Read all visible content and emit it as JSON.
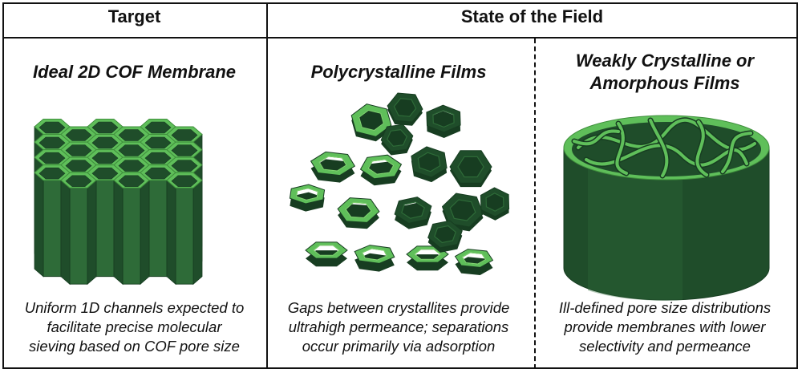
{
  "headers": {
    "target": "Target",
    "state": "State of the Field"
  },
  "panels": [
    {
      "title": "Ideal 2D COF Membrane",
      "caption_lines": [
        "Uniform 1D channels expected to",
        "facilitate precise molecular",
        "sieving based on COF pore size"
      ]
    },
    {
      "title": "Polycrystalline Films",
      "caption_lines": [
        "Gaps between crystallites provide",
        "ultrahigh permeance; separations",
        "occur primarily via adsorption"
      ]
    },
    {
      "title_lines": [
        "Weakly Crystalline or",
        "Amorphous Films"
      ],
      "caption_lines": [
        "Ill-defined pore size distributions",
        "provide membranes with lower",
        "selectivity and permeance"
      ]
    }
  ],
  "colors": {
    "dark_green": "#1f4d2a",
    "mid_green": "#2e6b38",
    "light_green": "#5fbf5a",
    "highlight_green": "#7ed36f"
  }
}
